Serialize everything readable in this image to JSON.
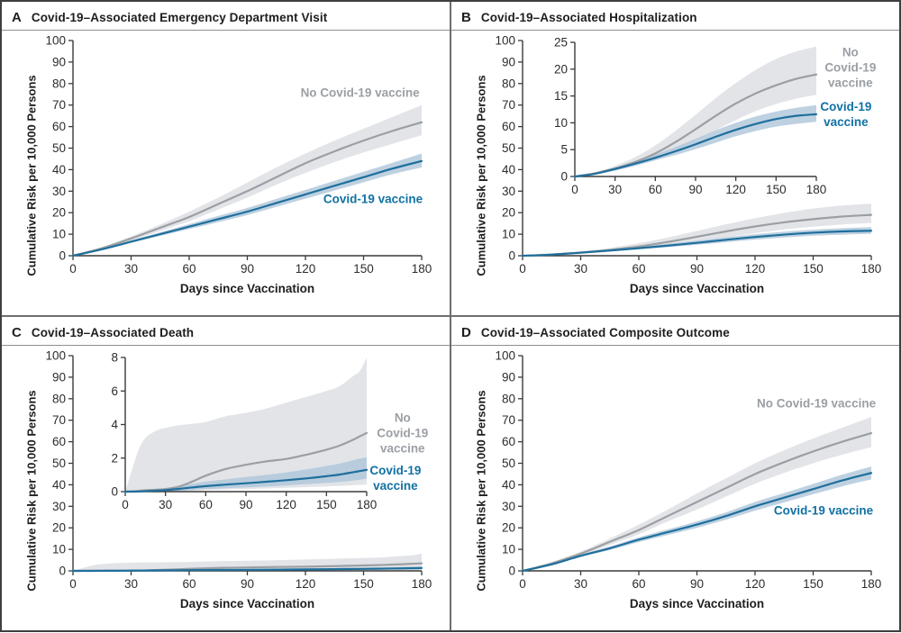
{
  "colors": {
    "vaccine_line": "#1f6f9c",
    "vaccine_band": "#aec6da",
    "vaccine_text": "#1171a3",
    "no_vaccine_line": "#9b9fa4",
    "no_vaccine_band": "#e2e4e8",
    "no_vaccine_text": "#9b9fa4",
    "axis": "#3a3a3a",
    "tick_text": "#2c2c2c",
    "frame": "#3f3f3f",
    "divider": "#6e6e6e",
    "title_text": "#1e1e21"
  },
  "chart_data": [
    {
      "panel": "A",
      "title": "Covid-19–Associated Emergency Department Visit",
      "type": "line",
      "x_label": "Days since Vaccination",
      "y_label": "Cumulative Risk per 10,000 Persons",
      "xlim": [
        0,
        180
      ],
      "ylim": [
        0,
        100
      ],
      "x_ticks": [
        0,
        30,
        60,
        90,
        120,
        150,
        180
      ],
      "y_ticks": [
        0,
        10,
        20,
        30,
        40,
        50,
        60,
        70,
        80,
        90,
        100
      ],
      "grid": false,
      "legend_position": "annotated-inline",
      "series": [
        {
          "name": "No Covid-19 vaccine",
          "color_key": "no_vaccine",
          "x": [
            0,
            15,
            30,
            45,
            60,
            75,
            90,
            105,
            120,
            135,
            150,
            165,
            180
          ],
          "y": [
            0,
            3.5,
            8,
            13,
            18,
            24,
            30,
            36.5,
            43,
            48.5,
            53.5,
            58,
            62
          ],
          "band_lower": [
            0,
            3,
            7,
            11.5,
            16,
            21.5,
            27,
            33,
            38.5,
            43.5,
            48,
            52,
            56
          ],
          "band_upper": [
            0,
            4,
            9,
            14.5,
            20.5,
            27,
            34,
            41,
            47.5,
            53.5,
            59,
            64.5,
            70
          ]
        },
        {
          "name": "Covid-19 vaccine",
          "color_key": "vaccine",
          "x": [
            0,
            15,
            30,
            45,
            60,
            75,
            90,
            105,
            120,
            135,
            150,
            165,
            180
          ],
          "y": [
            0,
            3,
            6.5,
            10,
            13.5,
            17,
            20.5,
            24.5,
            28.5,
            32.5,
            36.5,
            40.5,
            44
          ],
          "band_lower": [
            0,
            2.7,
            6,
            9.2,
            12.4,
            15.6,
            18.9,
            22.7,
            26.5,
            30.3,
            34.1,
            37.9,
            41
          ],
          "band_upper": [
            0,
            3.3,
            7.1,
            10.9,
            14.7,
            18.5,
            22.2,
            26.4,
            30.6,
            34.8,
            39,
            43.2,
            47.5
          ]
        }
      ],
      "annotations": [
        {
          "text": "No Covid-19 vaccine",
          "color_key": "no_vaccine",
          "fx": 0.8,
          "fy": 0.218
        },
        {
          "text": "Covid-19 vaccine",
          "color_key": "vaccine",
          "fx": 0.829,
          "fy": 0.59
        }
      ],
      "inset": null
    },
    {
      "panel": "B",
      "title": "Covid-19–Associated Hospitalization",
      "type": "line",
      "x_label": "Days since Vaccination",
      "y_label": "Cumulative Risk per 10,000 Persons",
      "xlim": [
        0,
        180
      ],
      "ylim": [
        0,
        100
      ],
      "x_ticks": [
        0,
        30,
        60,
        90,
        120,
        150,
        180
      ],
      "y_ticks": [
        0,
        10,
        20,
        30,
        40,
        50,
        60,
        70,
        80,
        90,
        100
      ],
      "grid": false,
      "legend_position": "annotated-inline",
      "series": [
        {
          "name": "No Covid-19 vaccine",
          "color_key": "no_vaccine",
          "x": [
            0,
            15,
            30,
            45,
            60,
            75,
            90,
            105,
            120,
            135,
            150,
            165,
            180
          ],
          "y": [
            0,
            0.6,
            1.5,
            2.7,
            4.3,
            6.4,
            8.8,
            11.3,
            13.6,
            15.5,
            17,
            18.2,
            19
          ],
          "band_lower": [
            0,
            0.4,
            1.1,
            2,
            3.2,
            4.8,
            6.6,
            8.6,
            10.5,
            12.2,
            13.5,
            14.5,
            15.2
          ],
          "band_upper": [
            0,
            0.8,
            2,
            3.6,
            5.8,
            8.5,
            11.5,
            14.6,
            17.4,
            19.9,
            21.9,
            23.3,
            24.2
          ]
        },
        {
          "name": "Covid-19 vaccine",
          "color_key": "vaccine",
          "x": [
            0,
            15,
            30,
            45,
            60,
            75,
            90,
            105,
            120,
            135,
            150,
            165,
            180
          ],
          "y": [
            0,
            0.5,
            1.4,
            2.4,
            3.5,
            4.7,
            6,
            7.4,
            8.7,
            9.8,
            10.7,
            11.3,
            11.6
          ],
          "band_lower": [
            0,
            0.4,
            1.1,
            2,
            3,
            4,
            5.1,
            6.3,
            7.5,
            8.5,
            9.3,
            9.8,
            10.2
          ],
          "band_upper": [
            0,
            0.6,
            1.7,
            2.9,
            4.1,
            5.5,
            7,
            8.6,
            10,
            11.2,
            12.1,
            12.8,
            13.3
          ]
        }
      ],
      "annotations": [
        {
          "text": "No\nCovid-19\nvaccine",
          "color_key": "no_vaccine",
          "fx": 0.891,
          "fy": 0.129
        },
        {
          "text": "Covid-19\nvaccine",
          "color_key": "vaccine",
          "fx": 0.881,
          "fy": 0.293
        }
      ],
      "inset": {
        "ylim": [
          0,
          25
        ],
        "y_ticks": [
          0,
          5,
          10,
          15,
          20,
          25
        ],
        "x_ticks": [
          0,
          30,
          60,
          90,
          120,
          150,
          180
        ]
      }
    },
    {
      "panel": "C",
      "title": "Covid-19–Associated Death",
      "type": "line",
      "x_label": "Days since Vaccination",
      "y_label": "Cumulative Risk per 10,000 Persons",
      "xlim": [
        0,
        180
      ],
      "ylim": [
        0,
        100
      ],
      "x_ticks": [
        0,
        30,
        60,
        90,
        120,
        150,
        180
      ],
      "y_ticks": [
        0,
        10,
        20,
        30,
        40,
        50,
        60,
        70,
        80,
        90,
        100
      ],
      "grid": false,
      "legend_position": "annotated-inline",
      "series": [
        {
          "name": "No Covid-19 vaccine",
          "color_key": "no_vaccine",
          "x": [
            0,
            5,
            10,
            15,
            20,
            25,
            30,
            40,
            50,
            60,
            75,
            90,
            105,
            120,
            135,
            150,
            160,
            170,
            175,
            180
          ],
          "y": [
            0,
            0.02,
            0.05,
            0.08,
            0.1,
            0.12,
            0.15,
            0.3,
            0.6,
            0.95,
            1.35,
            1.6,
            1.8,
            1.95,
            2.2,
            2.5,
            2.75,
            3.1,
            3.3,
            3.5
          ],
          "band_lower": [
            0,
            0,
            0,
            0,
            0,
            0,
            0,
            0.02,
            0.05,
            0.1,
            0.13,
            0.16,
            0.19,
            0.23,
            0.27,
            0.31,
            0.34,
            0.38,
            0.4,
            0.42
          ],
          "band_upper": [
            0,
            1.3,
            2.5,
            3.2,
            3.5,
            3.7,
            3.8,
            3.95,
            4.05,
            4.15,
            4.5,
            4.7,
            4.95,
            5.3,
            5.65,
            6.0,
            6.3,
            6.9,
            7.2,
            8.0
          ]
        },
        {
          "name": "Covid-19 vaccine",
          "color_key": "vaccine",
          "x": [
            0,
            5,
            10,
            15,
            20,
            25,
            30,
            40,
            50,
            60,
            75,
            90,
            105,
            120,
            135,
            150,
            160,
            170,
            175,
            180
          ],
          "y": [
            0,
            0,
            0.01,
            0.03,
            0.05,
            0.07,
            0.09,
            0.16,
            0.25,
            0.33,
            0.42,
            0.5,
            0.59,
            0.68,
            0.79,
            0.92,
            1.02,
            1.16,
            1.23,
            1.3
          ],
          "band_lower": [
            0,
            0,
            0,
            0,
            0,
            0.01,
            0.02,
            0.05,
            0.1,
            0.15,
            0.2,
            0.25,
            0.31,
            0.37,
            0.44,
            0.52,
            0.58,
            0.66,
            0.71,
            0.78
          ],
          "band_upper": [
            0,
            0.02,
            0.05,
            0.09,
            0.13,
            0.17,
            0.21,
            0.33,
            0.46,
            0.59,
            0.73,
            0.87,
            1.0,
            1.15,
            1.33,
            1.53,
            1.68,
            1.88,
            1.97,
            2.05
          ]
        }
      ],
      "annotations": [
        {
          "text": "No\nCovid-19\nvaccine",
          "color_key": "no_vaccine",
          "fx": 0.895,
          "fy": 0.306
        },
        {
          "text": "Covid-19\nvaccine",
          "color_key": "vaccine",
          "fx": 0.879,
          "fy": 0.464
        }
      ],
      "inset": {
        "ylim": [
          0,
          8
        ],
        "y_ticks": [
          0,
          2,
          4,
          6,
          8
        ],
        "x_ticks": [
          0,
          30,
          60,
          90,
          120,
          150,
          180
        ]
      }
    },
    {
      "panel": "D",
      "title": "Covid-19–Associated Composite Outcome",
      "type": "line",
      "x_label": "Days since Vaccination",
      "y_label": "Cumulative Risk per 10,000 Persons",
      "xlim": [
        0,
        180
      ],
      "ylim": [
        0,
        100
      ],
      "x_ticks": [
        0,
        30,
        60,
        90,
        120,
        150,
        180
      ],
      "y_ticks": [
        0,
        10,
        20,
        30,
        40,
        50,
        60,
        70,
        80,
        90,
        100
      ],
      "grid": false,
      "legend_position": "annotated-inline",
      "series": [
        {
          "name": "No Covid-19 vaccine",
          "color_key": "no_vaccine",
          "x": [
            0,
            15,
            30,
            45,
            60,
            75,
            90,
            105,
            120,
            135,
            150,
            165,
            180
          ],
          "y": [
            0,
            3.5,
            8,
            13.5,
            19,
            25.5,
            32,
            38.5,
            45,
            50.5,
            55.5,
            60,
            64
          ],
          "band_lower": [
            0,
            3,
            7,
            12,
            17,
            23,
            28.5,
            34.5,
            40.5,
            45.5,
            50,
            54,
            57.5
          ],
          "band_upper": [
            0,
            4,
            9,
            15,
            21.5,
            28.5,
            36,
            43,
            50,
            56,
            61.5,
            66.5,
            71.5
          ]
        },
        {
          "name": "Covid-19 vaccine",
          "color_key": "vaccine",
          "x": [
            0,
            15,
            30,
            45,
            60,
            75,
            90,
            105,
            120,
            135,
            150,
            165,
            180
          ],
          "y": [
            0,
            3,
            7,
            10.5,
            14.5,
            18,
            21.5,
            25.5,
            30,
            34,
            38,
            42,
            45.5
          ],
          "band_lower": [
            0,
            2.7,
            6.5,
            9.7,
            13.4,
            16.7,
            20,
            23.8,
            28,
            31.8,
            35.6,
            39.3,
            42.5
          ],
          "band_upper": [
            0,
            3.3,
            7.5,
            11.3,
            15.6,
            19.3,
            23,
            27.2,
            32,
            36.2,
            40.4,
            44.7,
            48.5
          ]
        }
      ],
      "annotations": [
        {
          "text": "No Covid-19 vaccine",
          "color_key": "no_vaccine",
          "fx": 0.815,
          "fy": 0.202
        },
        {
          "text": "Covid-19 vaccine",
          "color_key": "vaccine",
          "fx": 0.831,
          "fy": 0.577
        }
      ],
      "inset": null
    }
  ]
}
